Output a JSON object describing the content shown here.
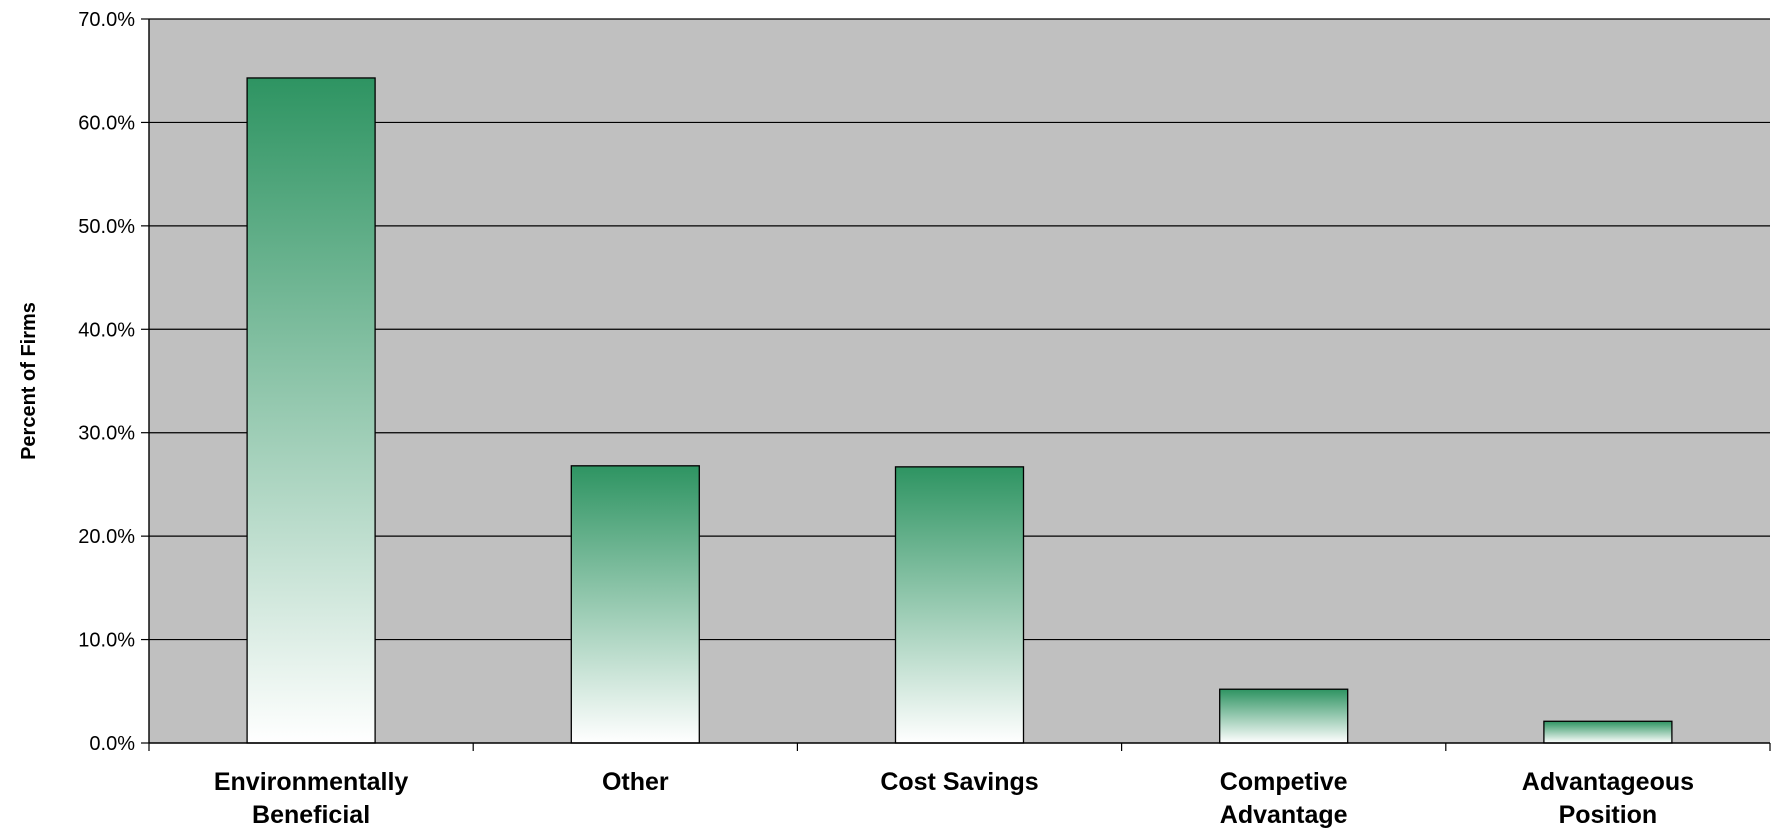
{
  "chart_data": {
    "type": "bar",
    "title": "",
    "xlabel": "",
    "ylabel": "Percent of Firms",
    "categories": [
      [
        "Environmentally",
        "Beneficial"
      ],
      [
        "Other"
      ],
      [
        "Cost Savings"
      ],
      [
        "Competive",
        "Advantage"
      ],
      [
        "Advantageous",
        "Position"
      ]
    ],
    "values": [
      64.3,
      26.8,
      26.7,
      5.2,
      2.1
    ],
    "ylim": [
      0,
      70
    ],
    "yticks": [
      "0.0%",
      "10.0%",
      "20.0%",
      "30.0%",
      "40.0%",
      "50.0%",
      "60.0%",
      "70.0%"
    ],
    "grid": true,
    "legend": "none",
    "colors": {
      "plot_background": "#c0c0c0",
      "bar_top": "#2e9462",
      "bar_bottom": "#ffffff",
      "gridline": "#000000"
    }
  }
}
